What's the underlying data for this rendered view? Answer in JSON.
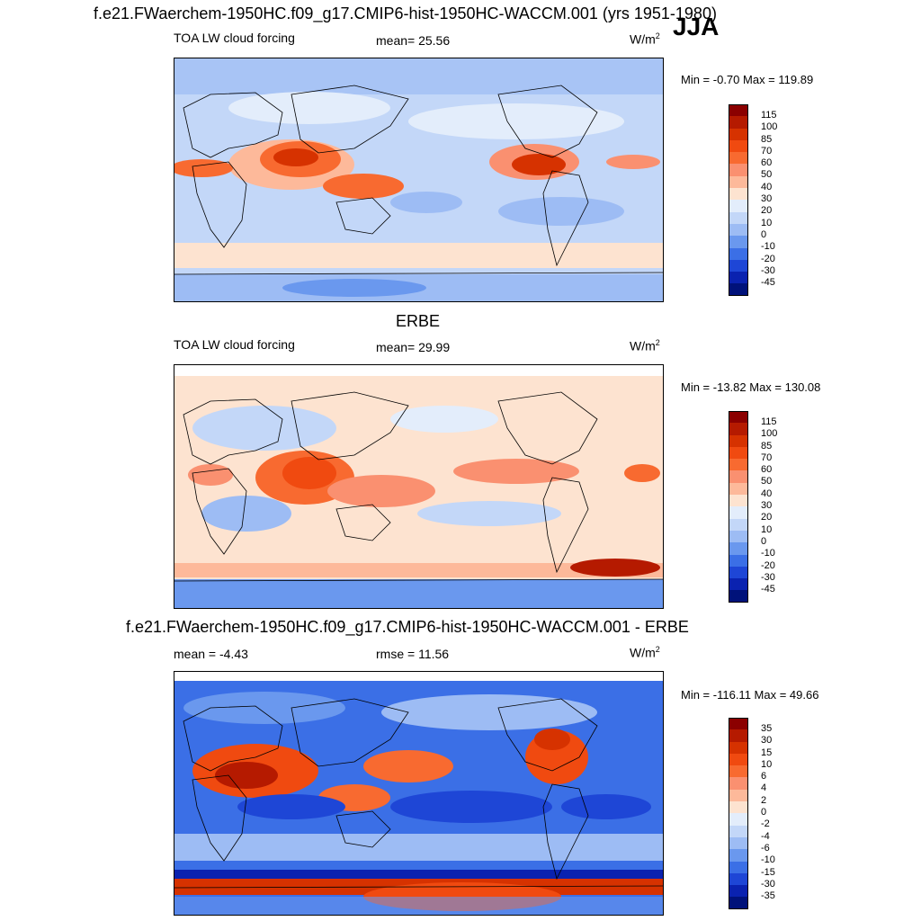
{
  "header": {
    "title": "f.e21.FWaerchem-1950HC.f09_g17.CMIP6-hist-1950HC-WACCM.001 (yrs 1951-1980)",
    "season": "JJA"
  },
  "panels": [
    {
      "id": "model",
      "title": "",
      "left_label": "TOA LW cloud forcing",
      "center_label": "mean=  25.56",
      "units": "W/m",
      "units_sup": "2",
      "minmax": "Min =  -0.70 Max = 119.89",
      "levels": [
        "115",
        "100",
        "85",
        "70",
        "60",
        "50",
        "40",
        "30",
        "20",
        "10",
        "0",
        "-10",
        "-20",
        "-30",
        "-45"
      ]
    },
    {
      "id": "obs",
      "title": "ERBE",
      "left_label": "TOA LW cloud forcing",
      "center_label": "mean=  29.99",
      "units": "W/m",
      "units_sup": "2",
      "minmax": "Min = -13.82 Max = 130.08",
      "levels": [
        "115",
        "100",
        "85",
        "70",
        "60",
        "50",
        "40",
        "30",
        "20",
        "10",
        "0",
        "-10",
        "-20",
        "-30",
        "-45"
      ]
    },
    {
      "id": "diff",
      "title": "f.e21.FWaerchem-1950HC.f09_g17.CMIP6-hist-1950HC-WACCM.001 - ERBE",
      "left_label": "mean =  -4.43",
      "center_label": "rmse =  11.56",
      "units": "W/m",
      "units_sup": "2",
      "minmax": "Min = -116.11 Max =  49.66",
      "levels": [
        "35",
        "30",
        "15",
        "10",
        "6",
        "4",
        "2",
        "0",
        "-2",
        "-4",
        "-6",
        "-10",
        "-15",
        "-30",
        "-35"
      ]
    }
  ],
  "colors": {
    "scale": [
      "#8b0000",
      "#b51a00",
      "#d63200",
      "#f04a10",
      "#f86a30",
      "#fa9070",
      "#fdb99a",
      "#fde3d0",
      "#e3edfb",
      "#c3d7f8",
      "#9dbcf4",
      "#6a98ee",
      "#3b6fe6",
      "#1e46d6",
      "#0a22b0",
      "#00127a"
    ]
  }
}
